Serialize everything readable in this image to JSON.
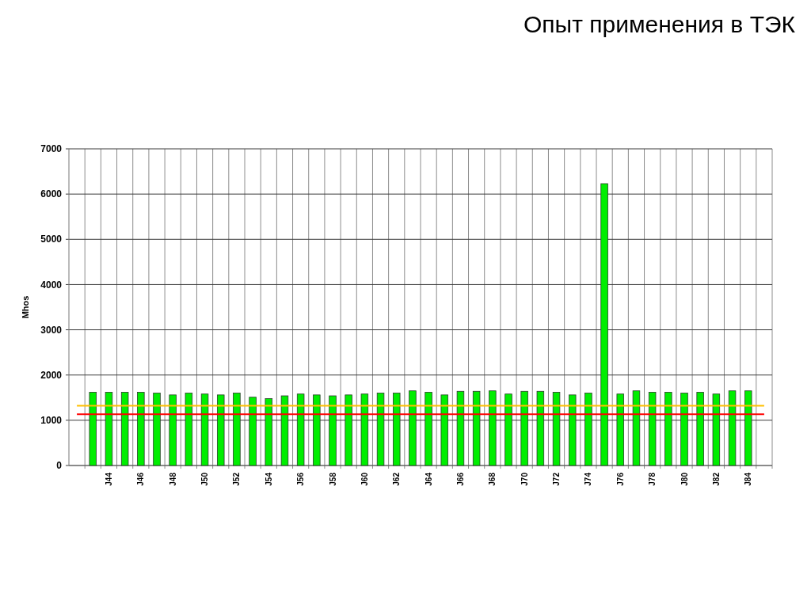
{
  "chart_data": {
    "type": "bar",
    "title": "Опыт применения в ТЭК",
    "ylabel": "Mhos",
    "categories": [
      null,
      null,
      "J44",
      null,
      "J46",
      null,
      "J48",
      null,
      "J50",
      null,
      "J52",
      null,
      "J54",
      null,
      "J56",
      null,
      "J58",
      null,
      "J60",
      null,
      "J62",
      null,
      "J64",
      null,
      "J66",
      null,
      "J68",
      null,
      "J70",
      null,
      "J72",
      null,
      "J74",
      null,
      "J76",
      null,
      "J78",
      null,
      "J80",
      null,
      "J82",
      null,
      "J84",
      null
    ],
    "values": [
      null,
      1620,
      1620,
      1620,
      1620,
      1600,
      1560,
      1600,
      1580,
      1560,
      1600,
      1510,
      1480,
      1540,
      1580,
      1560,
      1540,
      1560,
      1580,
      1600,
      1600,
      1650,
      1620,
      1560,
      1640,
      1640,
      1650,
      1580,
      1640,
      1640,
      1620,
      1560,
      1600,
      6230,
      1580,
      1650,
      1620,
      1620,
      1600,
      1620,
      1580,
      1650,
      1650,
      null
    ],
    "color": "#00ee00",
    "ylim": [
      0,
      7000
    ],
    "yticks": [
      0,
      1000,
      2000,
      3000,
      4000,
      5000,
      6000,
      7000
    ],
    "grid": true,
    "ref_lines": [
      {
        "axis": "y",
        "value": 1320,
        "color": "#ffc000"
      },
      {
        "axis": "y",
        "value": 1135,
        "color": "#ff0000"
      }
    ]
  }
}
